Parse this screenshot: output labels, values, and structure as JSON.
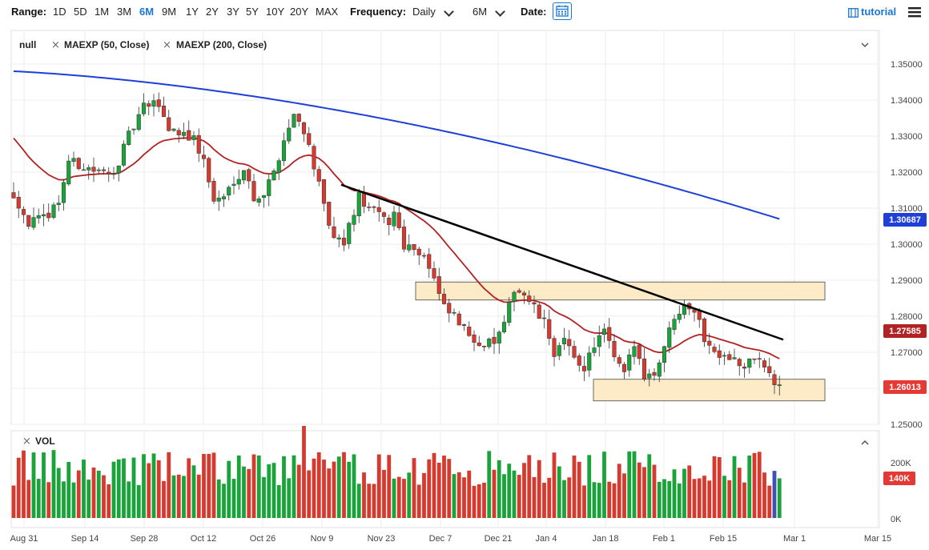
{
  "toolbar": {
    "range_label": "Range:",
    "ranges": [
      "1D",
      "5D",
      "1M",
      "3M",
      "6M",
      "9M",
      "1Y",
      "2Y",
      "3Y",
      "5Y",
      "10Y",
      "20Y",
      "MAX"
    ],
    "active_range": "6M",
    "frequency_label": "Frequency:",
    "frequency_value": "Daily",
    "period_value": "6M",
    "date_label": "Date:",
    "tutorial_label": "tutorial",
    "accent_color": "#1976d2"
  },
  "legend": {
    "main_symbol": "null",
    "indicators": [
      "MAEXP (50, Close)",
      "MAEXP (200, Close)"
    ],
    "volume_label": "VOL"
  },
  "price_axis": {
    "ticks": [
      "1.35000",
      "1.34000",
      "1.33000",
      "1.32000",
      "1.31000",
      "1.30000",
      "1.29000",
      "1.28000",
      "1.27000",
      "1.26000",
      "1.25000"
    ],
    "tags": [
      {
        "label": "1.30687",
        "color": "#1e3fd8"
      },
      {
        "label": "1.27585",
        "color": "#b22222"
      },
      {
        "label": "1.26013",
        "color": "#e53935"
      }
    ]
  },
  "volume_axis": {
    "ticks": [
      "200K",
      "0K"
    ],
    "tag": {
      "label": "140K",
      "color": "#e53935"
    }
  },
  "date_axis": {
    "ticks": [
      "Aug 31",
      "Sep 14",
      "Sep 28",
      "Oct 12",
      "Oct 26",
      "Nov 9",
      "Nov 23",
      "Dec 7",
      "Dec 21",
      "Jan 4",
      "Jan 18",
      "Feb 1",
      "Feb 15",
      "Mar 1",
      "Mar 15"
    ]
  },
  "chart_data": {
    "type": "candlestick",
    "title": "",
    "series": [
      {
        "name": "MAEXP (50, Close)",
        "color": "#b22222",
        "last": 1.27585
      },
      {
        "name": "MAEXP (200, Close)",
        "color": "#1e3fd8",
        "last": 1.30687
      },
      {
        "name": "VOL",
        "last": "140K"
      }
    ],
    "last_close": 1.26013,
    "ylim": [
      1.25,
      1.355
    ],
    "x_range": [
      "Aug 31",
      "Mar 15"
    ],
    "up_color": "#1aa33a",
    "down_color": "#d63a2f",
    "trendline": {
      "color": "#000000",
      "from": {
        "date": "Nov 11",
        "price": 1.3165
      },
      "to": {
        "date": "Feb 26",
        "price": 1.2735
      }
    },
    "zones": [
      {
        "from": "Dec 4",
        "to": "Feb 26",
        "low": 1.2845,
        "high": 1.2895,
        "color": "#fdebc8"
      },
      {
        "from": "Jan 15",
        "to": "Feb 26",
        "low": 1.2565,
        "high": 1.2625,
        "color": "#fdebc8"
      }
    ]
  }
}
